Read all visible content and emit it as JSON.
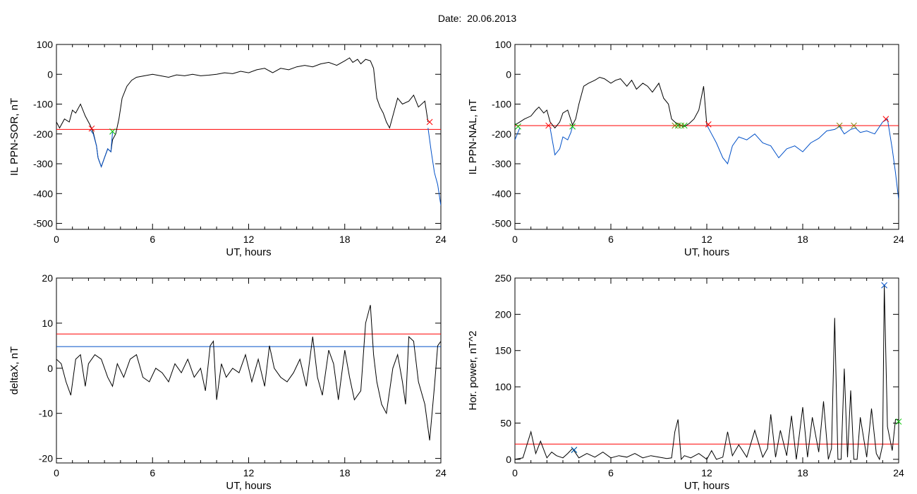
{
  "title": "Date:  20.06.2013",
  "chart_data": [
    {
      "type": "line",
      "xlabel": "UT, hours",
      "ylabel": "IL PPN-SOR, nT",
      "xlim": [
        0,
        24
      ],
      "ylim": [
        -520,
        100
      ],
      "xticks": [
        "0",
        "6",
        "12",
        "18",
        "24"
      ],
      "yticks": [
        "100",
        "0",
        "-100",
        "-200",
        "-300",
        "-400",
        "-500"
      ],
      "threshold": -185,
      "series": [
        {
          "color": "#000000",
          "x": [
            0,
            0.2,
            0.5,
            0.8,
            1.0,
            1.2,
            1.5,
            1.8,
            2.1,
            2.3,
            2.5,
            2.6,
            2.8,
            3.0,
            3.2,
            3.4,
            3.5,
            3.7,
            3.9,
            4.1,
            4.4,
            4.7,
            5.0,
            5.5,
            6.0,
            6.5,
            7.0,
            7.5,
            8.0,
            8.5,
            9.0,
            9.5,
            10.0,
            10.5,
            11.0,
            11.5,
            12.0,
            12.5,
            13.0,
            13.5,
            14.0,
            14.5,
            15.0,
            15.5,
            16.0,
            16.5,
            17.0,
            17.5,
            18.0,
            18.3,
            18.5,
            18.8,
            19.0,
            19.3,
            19.6,
            19.8,
            20.0,
            20.2,
            20.4,
            20.6,
            20.8,
            21.0,
            21.3,
            21.6,
            22.0,
            22.3,
            22.6,
            23.0,
            23.2
          ],
          "y": [
            -160,
            -180,
            -150,
            -160,
            -120,
            -130,
            -100,
            -140,
            -170,
            -195,
            -240,
            -280,
            -310,
            -280,
            -250,
            -260,
            -220,
            -200,
            -150,
            -80,
            -40,
            -20,
            -10,
            -5,
            0,
            -5,
            -10,
            -2,
            -5,
            0,
            -5,
            -3,
            0,
            5,
            2,
            10,
            5,
            15,
            20,
            5,
            20,
            15,
            25,
            30,
            25,
            35,
            40,
            30,
            45,
            55,
            40,
            50,
            35,
            50,
            45,
            20,
            -80,
            -110,
            -130,
            -160,
            -180,
            -140,
            -80,
            -100,
            -90,
            -70,
            -110,
            -90,
            -160
          ]
        },
        {
          "color": "#0050c8",
          "x": [
            2.1,
            2.3,
            2.5,
            2.6,
            2.8,
            3.0,
            3.2,
            3.4,
            3.5
          ],
          "y": [
            -185,
            -200,
            -240,
            -280,
            -310,
            -280,
            -250,
            -260,
            -195
          ]
        },
        {
          "color": "#0050c8",
          "x": [
            23.2,
            23.4,
            23.6,
            23.8,
            24.0
          ],
          "y": [
            -180,
            -260,
            -330,
            -370,
            -440
          ]
        }
      ],
      "markers": [
        {
          "x": 2.2,
          "y": -182,
          "color": "#ff0000"
        },
        {
          "x": 3.5,
          "y": -192,
          "color": "#00c000"
        },
        {
          "x": 23.3,
          "y": -160,
          "color": "#ff0000"
        }
      ]
    },
    {
      "type": "line",
      "xlabel": "UT, hours",
      "ylabel": "IL PPN-NAL, nT",
      "xlim": [
        0,
        24
      ],
      "ylim": [
        -520,
        100
      ],
      "xticks": [
        "0",
        "6",
        "12",
        "18",
        "24"
      ],
      "yticks": [
        "100",
        "0",
        "-100",
        "-200",
        "-300",
        "-400",
        "-500"
      ],
      "threshold": -172,
      "series": [
        {
          "color": "#000000",
          "x": [
            0,
            0.3,
            0.6,
            1.0,
            1.3,
            1.5,
            1.8,
            2.0,
            2.2,
            2.5,
            2.8,
            3.0,
            3.3,
            3.6,
            3.8,
            4.0,
            4.3,
            4.6,
            5.0,
            5.3,
            5.6,
            6.0,
            6.3,
            6.6,
            7.0,
            7.3,
            7.6,
            8.0,
            8.3,
            8.6,
            9.0,
            9.3,
            9.6,
            9.8,
            10.0,
            10.3,
            10.6,
            10.9,
            11.2,
            11.5,
            11.8,
            12.0
          ],
          "y": [
            -170,
            -160,
            -150,
            -140,
            -120,
            -110,
            -130,
            -120,
            -160,
            -180,
            -160,
            -130,
            -120,
            -170,
            -150,
            -100,
            -40,
            -30,
            -20,
            -10,
            -15,
            -30,
            -20,
            -15,
            -40,
            -20,
            -50,
            -30,
            -40,
            -60,
            -30,
            -80,
            -100,
            -150,
            -160,
            -170,
            -175,
            -165,
            -150,
            -120,
            -40,
            -170
          ]
        },
        {
          "color": "#0050c8",
          "x": [
            0,
            0.3
          ],
          "y": [
            -220,
            -180
          ]
        },
        {
          "color": "#0050c8",
          "x": [
            2.2,
            2.5,
            2.8,
            3.0,
            3.3,
            3.5,
            3.6
          ],
          "y": [
            -180,
            -270,
            -250,
            -210,
            -220,
            -195,
            -175
          ]
        },
        {
          "color": "#0050c8",
          "x": [
            12.0,
            12.3,
            12.6,
            13.0,
            13.3,
            13.6,
            14.0,
            14.5,
            15.0,
            15.5,
            16.0,
            16.5,
            17.0,
            17.5,
            18.0,
            18.5,
            19.0,
            19.5,
            20.0,
            20.3,
            20.6,
            21.0,
            21.3,
            21.6,
            22.0,
            22.5,
            23.0,
            23.3,
            23.6,
            23.8,
            24.0
          ],
          "y": [
            -170,
            -200,
            -230,
            -280,
            -300,
            -240,
            -210,
            -220,
            -200,
            -230,
            -240,
            -280,
            -250,
            -240,
            -260,
            -230,
            -215,
            -190,
            -185,
            -175,
            -200,
            -185,
            -180,
            -195,
            -190,
            -200,
            -160,
            -150,
            -250,
            -330,
            -420
          ]
        }
      ],
      "markers": [
        {
          "x": 0.2,
          "y": -175,
          "color": "#00c000"
        },
        {
          "x": 2.1,
          "y": -172,
          "color": "#ff0000"
        },
        {
          "x": 3.6,
          "y": -175,
          "color": "#00c000"
        },
        {
          "x": 10.0,
          "y": -172,
          "color": "#808000"
        },
        {
          "x": 10.2,
          "y": -172,
          "color": "#00c000"
        },
        {
          "x": 10.4,
          "y": -172,
          "color": "#808000"
        },
        {
          "x": 10.6,
          "y": -172,
          "color": "#00c000"
        },
        {
          "x": 12.1,
          "y": -168,
          "color": "#ff0000"
        },
        {
          "x": 20.3,
          "y": -172,
          "color": "#808000"
        },
        {
          "x": 21.2,
          "y": -172,
          "color": "#808000"
        },
        {
          "x": 23.2,
          "y": -150,
          "color": "#ff0000"
        }
      ]
    },
    {
      "type": "line",
      "xlabel": "UT, hours",
      "ylabel": "deltaX, nT",
      "xlim": [
        0,
        24
      ],
      "ylim": [
        -21,
        20
      ],
      "xticks": [
        "0",
        "6",
        "12",
        "18",
        "24"
      ],
      "yticks": [
        "20",
        "10",
        "0",
        "-10",
        "-20"
      ],
      "thresholds": [
        {
          "value": 7.6,
          "color": "#ff0000"
        },
        {
          "value": 4.8,
          "color": "#0050c8"
        }
      ],
      "series": [
        {
          "color": "#000000",
          "x": [
            0,
            0.3,
            0.6,
            0.9,
            1.2,
            1.5,
            1.8,
            2.0,
            2.4,
            2.8,
            3.2,
            3.5,
            3.8,
            4.2,
            4.6,
            5.0,
            5.4,
            5.8,
            6.2,
            6.6,
            7.0,
            7.4,
            7.8,
            8.2,
            8.6,
            9.0,
            9.3,
            9.6,
            9.8,
            10.0,
            10.3,
            10.6,
            11.0,
            11.4,
            11.8,
            12.2,
            12.6,
            13.0,
            13.3,
            13.6,
            14.0,
            14.4,
            14.8,
            15.2,
            15.6,
            16.0,
            16.3,
            16.6,
            17.0,
            17.3,
            17.6,
            18.0,
            18.3,
            18.6,
            19.0,
            19.3,
            19.6,
            19.8,
            20.0,
            20.3,
            20.6,
            21.0,
            21.3,
            21.6,
            21.8,
            22.0,
            22.3,
            22.6,
            23.0,
            23.3,
            23.6,
            23.8,
            24.0
          ],
          "y": [
            2,
            1,
            -3,
            -6,
            2,
            3,
            -4,
            1,
            3,
            2,
            -2,
            -4,
            1,
            -2,
            2,
            3,
            -2,
            -3,
            0,
            -1,
            -3,
            1,
            -1,
            2,
            -2,
            0,
            -5,
            5,
            6,
            -7,
            1,
            -2,
            0,
            -1,
            3,
            -3,
            2,
            -4,
            5,
            0,
            -2,
            -3,
            -1,
            2,
            -4,
            7,
            -2,
            -6,
            4,
            1,
            -7,
            4,
            -2,
            -7,
            -5,
            10,
            14,
            3,
            -3,
            -8,
            -10,
            0,
            3,
            -3,
            -8,
            7,
            6,
            -3,
            -8,
            -16,
            -4,
            5,
            6
          ]
        }
      ],
      "markers": []
    },
    {
      "type": "line",
      "xlabel": "UT, hours",
      "ylabel": "Hor. power, nT^2",
      "xlim": [
        0,
        24
      ],
      "ylim": [
        -5,
        250
      ],
      "xticks": [
        "0",
        "6",
        "12",
        "18",
        "24"
      ],
      "yticks": [
        "250",
        "200",
        "150",
        "100",
        "50",
        "0"
      ],
      "threshold": 21,
      "series": [
        {
          "color": "#000000",
          "x": [
            0,
            0.5,
            1.0,
            1.3,
            1.6,
            2.0,
            2.3,
            2.6,
            3.0,
            3.3,
            3.6,
            4.0,
            4.5,
            5.0,
            5.5,
            6.0,
            6.5,
            7.0,
            7.5,
            8.0,
            8.5,
            9.0,
            9.5,
            9.8,
            10.0,
            10.2,
            10.4,
            10.6,
            11.0,
            11.5,
            12.0,
            12.3,
            12.6,
            13.0,
            13.3,
            13.6,
            14.0,
            14.5,
            15.0,
            15.5,
            15.8,
            16.0,
            16.3,
            16.6,
            17.0,
            17.3,
            17.6,
            18.0,
            18.3,
            18.6,
            19.0,
            19.3,
            19.6,
            19.8,
            20.0,
            20.2,
            20.4,
            20.6,
            20.8,
            21.0,
            21.2,
            21.4,
            21.6,
            22.0,
            22.3,
            22.6,
            22.8,
            23.0,
            23.1,
            23.3,
            23.6,
            23.8,
            24.0
          ],
          "y": [
            0,
            2,
            38,
            8,
            25,
            2,
            10,
            5,
            2,
            8,
            15,
            2,
            8,
            3,
            10,
            2,
            5,
            3,
            8,
            2,
            5,
            3,
            1,
            2,
            38,
            55,
            0,
            5,
            2,
            8,
            0,
            12,
            0,
            3,
            38,
            5,
            20,
            3,
            40,
            3,
            15,
            62,
            3,
            40,
            5,
            60,
            0,
            72,
            3,
            58,
            10,
            80,
            0,
            15,
            195,
            0,
            0,
            125,
            3,
            95,
            0,
            0,
            58,
            3,
            70,
            8,
            0,
            20,
            240,
            45,
            12,
            55,
            55
          ]
        }
      ],
      "markers": [
        {
          "x": 3.7,
          "y": 13,
          "color": "#00c000"
        },
        {
          "x": 3.7,
          "y": 13,
          "color": "#0050c8"
        },
        {
          "x": 23.1,
          "y": 240,
          "color": "#0050c8"
        },
        {
          "x": 24.0,
          "y": 52,
          "color": "#00c000"
        }
      ]
    }
  ]
}
